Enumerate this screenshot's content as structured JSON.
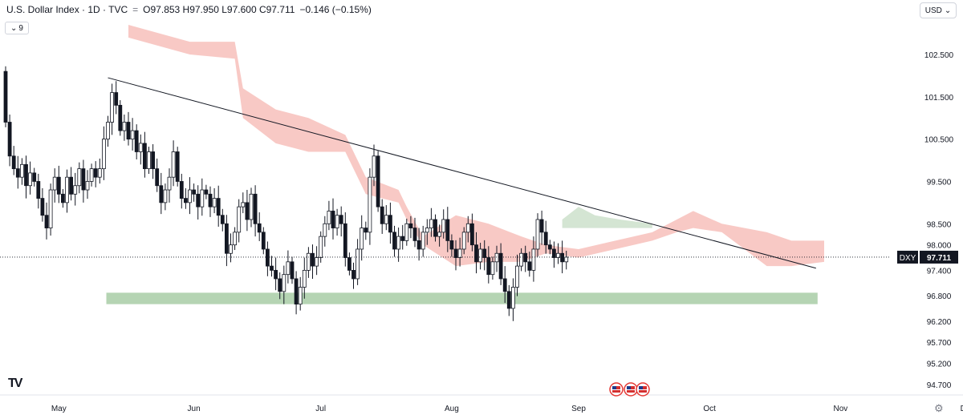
{
  "header": {
    "title": "U.S. Dollar Index · 1D · TVC",
    "ohlc": "O97.853 H97.950 L97.600 C97.711",
    "change": "−0.146 (−0.15%)",
    "dash": "="
  },
  "collapse_label": "9",
  "currency_label": "USD",
  "icons": {
    "collapse": "chevron-down-icon",
    "currency": "chevron-down-icon",
    "logo": "tradingview-logo",
    "settings": "gear-icon",
    "events": "us-flag-icon"
  },
  "price_tag": {
    "symbol": "DXY",
    "value": "97.711"
  },
  "colors": {
    "up": "#ffffff",
    "down": "#131722",
    "cloud": "#f5b7b1",
    "cloud_green": "#c5dcc4",
    "support": "#a8cca6",
    "trendline": "#131722"
  },
  "chart_data": {
    "type": "candlestick",
    "title": "U.S. Dollar Index · 1D · TVC",
    "ylim": [
      94.5,
      103.2
    ],
    "last_close": 97.711,
    "y_ticks": [
      "102.500",
      "101.500",
      "100.500",
      "99.500",
      "98.500",
      "98.000",
      "97.400",
      "96.800",
      "96.200",
      "95.700",
      "95.200",
      "94.700"
    ],
    "y_tick_values": [
      102.5,
      101.5,
      100.5,
      99.5,
      98.5,
      98.0,
      97.4,
      96.8,
      96.2,
      95.7,
      95.2,
      94.7
    ],
    "x_ticks": [
      "May",
      "Jun",
      "Jul",
      "Aug",
      "Sep",
      "Oct",
      "Nov",
      "Dec"
    ],
    "x_tick_index": [
      13,
      46,
      77,
      109,
      140,
      172,
      204,
      235
    ],
    "start_close": 100.9,
    "closes": [
      100.9,
      100.1,
      99.8,
      99.6,
      99.9,
      99.4,
      99.7,
      99.5,
      99.1,
      98.7,
      98.4,
      99.3,
      99.6,
      99.2,
      99.0,
      99.6,
      99.2,
      99.4,
      99.8,
      99.3,
      99.5,
      99.8,
      99.6,
      99.8,
      100.5,
      100.9,
      101.6,
      101.3,
      100.7,
      100.9,
      100.5,
      100.7,
      100.2,
      100.4,
      99.8,
      100.2,
      99.8,
      99.4,
      99.0,
      99.3,
      99.6,
      100.2,
      99.5,
      99.1,
      99.0,
      99.3,
      99.2,
      98.9,
      99.3,
      99.2,
      98.9,
      99.1,
      98.7,
      98.5,
      97.8,
      98.0,
      98.3,
      98.9,
      99.0,
      98.6,
      99.2,
      98.5,
      98.3,
      97.9,
      97.5,
      97.4,
      97.2,
      96.9,
      97.3,
      97.6,
      97.2,
      96.6,
      97.0,
      97.4,
      97.8,
      97.5,
      97.7,
      98.2,
      98.5,
      98.8,
      98.4,
      98.7,
      98.5,
      97.7,
      97.4,
      97.2,
      97.9,
      98.4,
      98.3,
      99.6,
      100.1,
      98.9,
      98.5,
      98.7,
      98.3,
      97.9,
      98.2,
      98.1,
      98.5,
      98.4,
      98.1,
      97.9,
      98.3,
      98.4,
      98.6,
      98.2,
      98.3,
      98.6,
      98.1,
      97.9,
      97.7,
      97.9,
      98.3,
      98.5,
      98.0,
      97.6,
      97.9,
      97.7,
      97.3,
      97.6,
      97.8,
      97.2,
      96.9,
      96.5,
      97.0,
      97.5,
      97.8,
      97.6,
      97.4,
      97.9,
      98.6,
      98.3,
      98.0,
      97.9,
      97.7,
      97.8,
      97.6,
      97.711
    ],
    "trendline": [
      {
        "i": 25,
        "v": 101.95
      },
      {
        "i": 198,
        "v": 97.45
      }
    ],
    "support_zone": {
      "from_i": 25,
      "to_i": 198,
      "low": 96.6,
      "high": 96.87
    },
    "cloud_red": [
      [
        30,
        103.2,
        102.9
      ],
      [
        45,
        102.8,
        102.5
      ],
      [
        56,
        102.8,
        102.4
      ],
      [
        58,
        101.7,
        101.0
      ],
      [
        66,
        101.2,
        100.4
      ],
      [
        74,
        101.0,
        100.2
      ],
      [
        83,
        100.6,
        100.2
      ],
      [
        88,
        99.6,
        99.2
      ],
      [
        96,
        99.3,
        99.0
      ],
      [
        98,
        98.9,
        98.6
      ],
      [
        102,
        98.2,
        98.0
      ],
      [
        110,
        98.7,
        97.5
      ],
      [
        118,
        98.5,
        97.6
      ],
      [
        126,
        98.2,
        97.6
      ],
      [
        132,
        98.0,
        97.8
      ],
      [
        140,
        97.9,
        97.7
      ],
      [
        158,
        98.3,
        98.1
      ],
      [
        164,
        98.6,
        98.3
      ],
      [
        168,
        98.8,
        98.4
      ],
      [
        175,
        98.5,
        98.3
      ],
      [
        186,
        98.3,
        97.5
      ],
      [
        192,
        98.1,
        97.5
      ],
      [
        200,
        98.1,
        97.6
      ]
    ],
    "cloud_green": [
      [
        136,
        98.6,
        98.4
      ],
      [
        140,
        98.9,
        98.4
      ],
      [
        144,
        98.7,
        98.4
      ],
      [
        150,
        98.6,
        98.4
      ],
      [
        158,
        98.5,
        98.4
      ]
    ]
  }
}
